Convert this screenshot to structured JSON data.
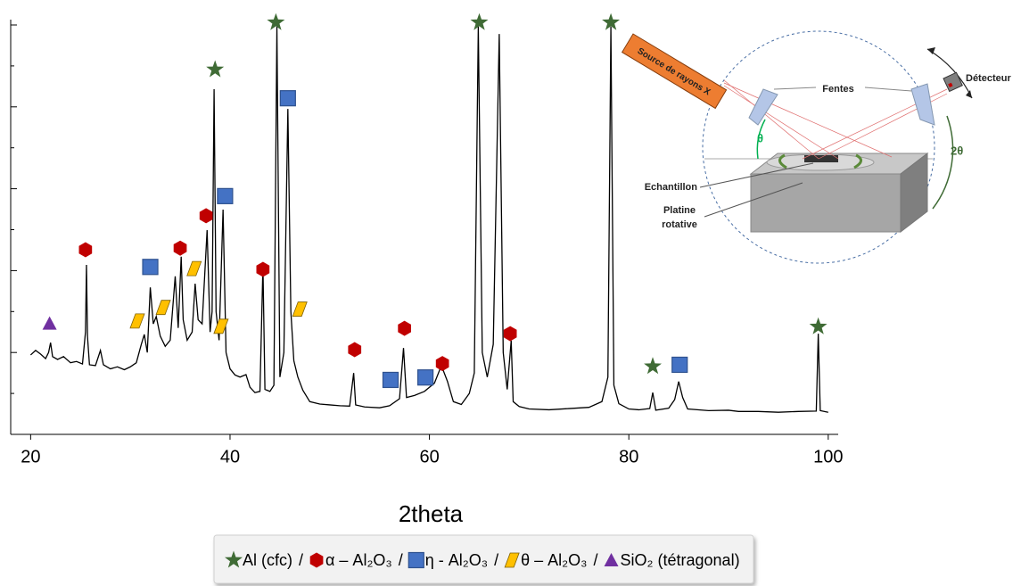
{
  "chart_data": {
    "type": "line",
    "xlabel": "2theta",
    "xlim": [
      18,
      101
    ],
    "ylim": [
      0,
      100
    ],
    "xticks": [
      20,
      40,
      60,
      80,
      100
    ],
    "yticks": [
      0,
      10,
      20,
      30,
      40,
      50,
      60,
      70,
      80,
      90,
      100
    ],
    "line_color": "#000000",
    "x": [
      20,
      20.5,
      21,
      21.5,
      21.8,
      22,
      22.2,
      22.7,
      23.3,
      24,
      24.6,
      25.2,
      25.5,
      25.6,
      25.7,
      25.9,
      26.5,
      27,
      27.3,
      28,
      28.7,
      29.4,
      30,
      30.6,
      31.1,
      31.4,
      31.7,
      32,
      32.3,
      32.6,
      33,
      33.5,
      34,
      34.5,
      34.8,
      35.1,
      35.3,
      35.7,
      36.2,
      36.5,
      36.8,
      37.2,
      37.7,
      38,
      38.2,
      38.4,
      38.6,
      38.9,
      39.3,
      39.6,
      40,
      40.5,
      41,
      41.6,
      42,
      42.5,
      43,
      43.3,
      43.5,
      44,
      44.4,
      44.7,
      45,
      45.4,
      45.8,
      46.1,
      46.4,
      46.8,
      47.3,
      48,
      49,
      50,
      51,
      52,
      52.4,
      52.6,
      53.5,
      55,
      56,
      57,
      57.4,
      57.7,
      58.5,
      59.5,
      60.5,
      61.2,
      61.8,
      62.4,
      63.2,
      64,
      64.5,
      64.9,
      65.3,
      65.8,
      66.4,
      67,
      67.4,
      67.8,
      68.2,
      68.4,
      69,
      70,
      72,
      74,
      76,
      77.3,
      77.9,
      78.2,
      78.5,
      79,
      80,
      81,
      82.1,
      82.4,
      82.7,
      84,
      84.6,
      85,
      85.4,
      85.9,
      88,
      90,
      91,
      93,
      95,
      97,
      98.8,
      99,
      99.2,
      100
    ],
    "values": [
      19.4,
      20.5,
      19.6,
      18.5,
      20,
      22.4,
      19,
      18.3,
      19,
      17.5,
      17.8,
      17.2,
      25,
      41.4,
      24,
      17,
      16.8,
      20.5,
      17,
      16,
      16.5,
      15.8,
      16.5,
      17.5,
      22,
      24.4,
      20,
      35.9,
      27,
      28.8,
      24,
      21.5,
      23,
      38.6,
      26,
      43.4,
      28,
      23,
      25,
      36.8,
      28,
      27,
      49.9,
      25,
      30,
      84.3,
      30,
      23,
      54.9,
      20,
      16,
      14.5,
      14,
      14.6,
      11.5,
      10.2,
      10.5,
      41.2,
      11,
      10.5,
      12,
      99.6,
      14,
      20,
      79.5,
      30,
      18,
      14,
      10.8,
      8,
      7.4,
      7.2,
      7,
      6.9,
      15,
      7.2,
      6.7,
      6.5,
      7,
      8.7,
      21.1,
      9,
      9.5,
      10.5,
      12.5,
      16.8,
      13,
      8,
      7.3,
      10,
      15,
      99.6,
      20,
      14,
      22,
      97.8,
      20,
      11,
      22.9,
      8,
      6.8,
      6.2,
      6.0,
      6.3,
      6.6,
      8,
      14,
      99.6,
      12,
      7.5,
      6.2,
      6.0,
      6.3,
      10.2,
      5.9,
      6.4,
      8.5,
      12.9,
      9,
      6.2,
      5.8,
      5.9,
      5.6,
      5.6,
      5.4,
      5.6,
      5.7,
      24.6,
      5.8,
      5.4
    ],
    "markers": [
      {
        "name": "Al (cfc)",
        "shape": "star",
        "color": "#3f6b35",
        "x": [
          38.5,
          44.6,
          65.0,
          78.2,
          82.4,
          99.0
        ],
        "values": [
          89.1,
          100.6,
          100.6,
          100.6,
          16.6,
          26.3
        ]
      },
      {
        "name": "α – Al₂O₃",
        "shape": "hexagon",
        "color": "#c00000",
        "x": [
          25.5,
          35.0,
          37.6,
          43.3,
          52.5,
          57.5,
          61.3,
          68.1
        ],
        "values": [
          45.1,
          45.5,
          53.4,
          40.3,
          20.7,
          25.9,
          17.3,
          24.6
        ]
      },
      {
        "name": "η - Al₂O₃",
        "shape": "square",
        "color": "#4472c4",
        "x": [
          32.0,
          39.5,
          45.8,
          56.1,
          59.6,
          85.1
        ],
        "values": [
          40.9,
          58.2,
          82.1,
          13.3,
          13.9,
          17.0
        ]
      },
      {
        "name": "θ – Al₂O₃",
        "shape": "parallelogram",
        "color": "#ffc000",
        "x": [
          30.7,
          33.3,
          36.4,
          39.1,
          47.0
        ],
        "values": [
          27.7,
          31.0,
          40.5,
          26.4,
          30.6
        ]
      },
      {
        "name": "SiO₂ (tétragonal)",
        "shape": "triangle",
        "color": "#7030a0",
        "x": [
          21.9
        ],
        "values": [
          27.1
        ]
      }
    ],
    "legend_separator": "/"
  },
  "inset_diagram": {
    "source": "Source de rayons X",
    "slits": "Fentes",
    "detector": "Détecteur",
    "theta": "θ",
    "two_theta": "2θ",
    "sample": "Echantillon",
    "stage_line1": "Platine",
    "stage_line2": "rotative"
  }
}
